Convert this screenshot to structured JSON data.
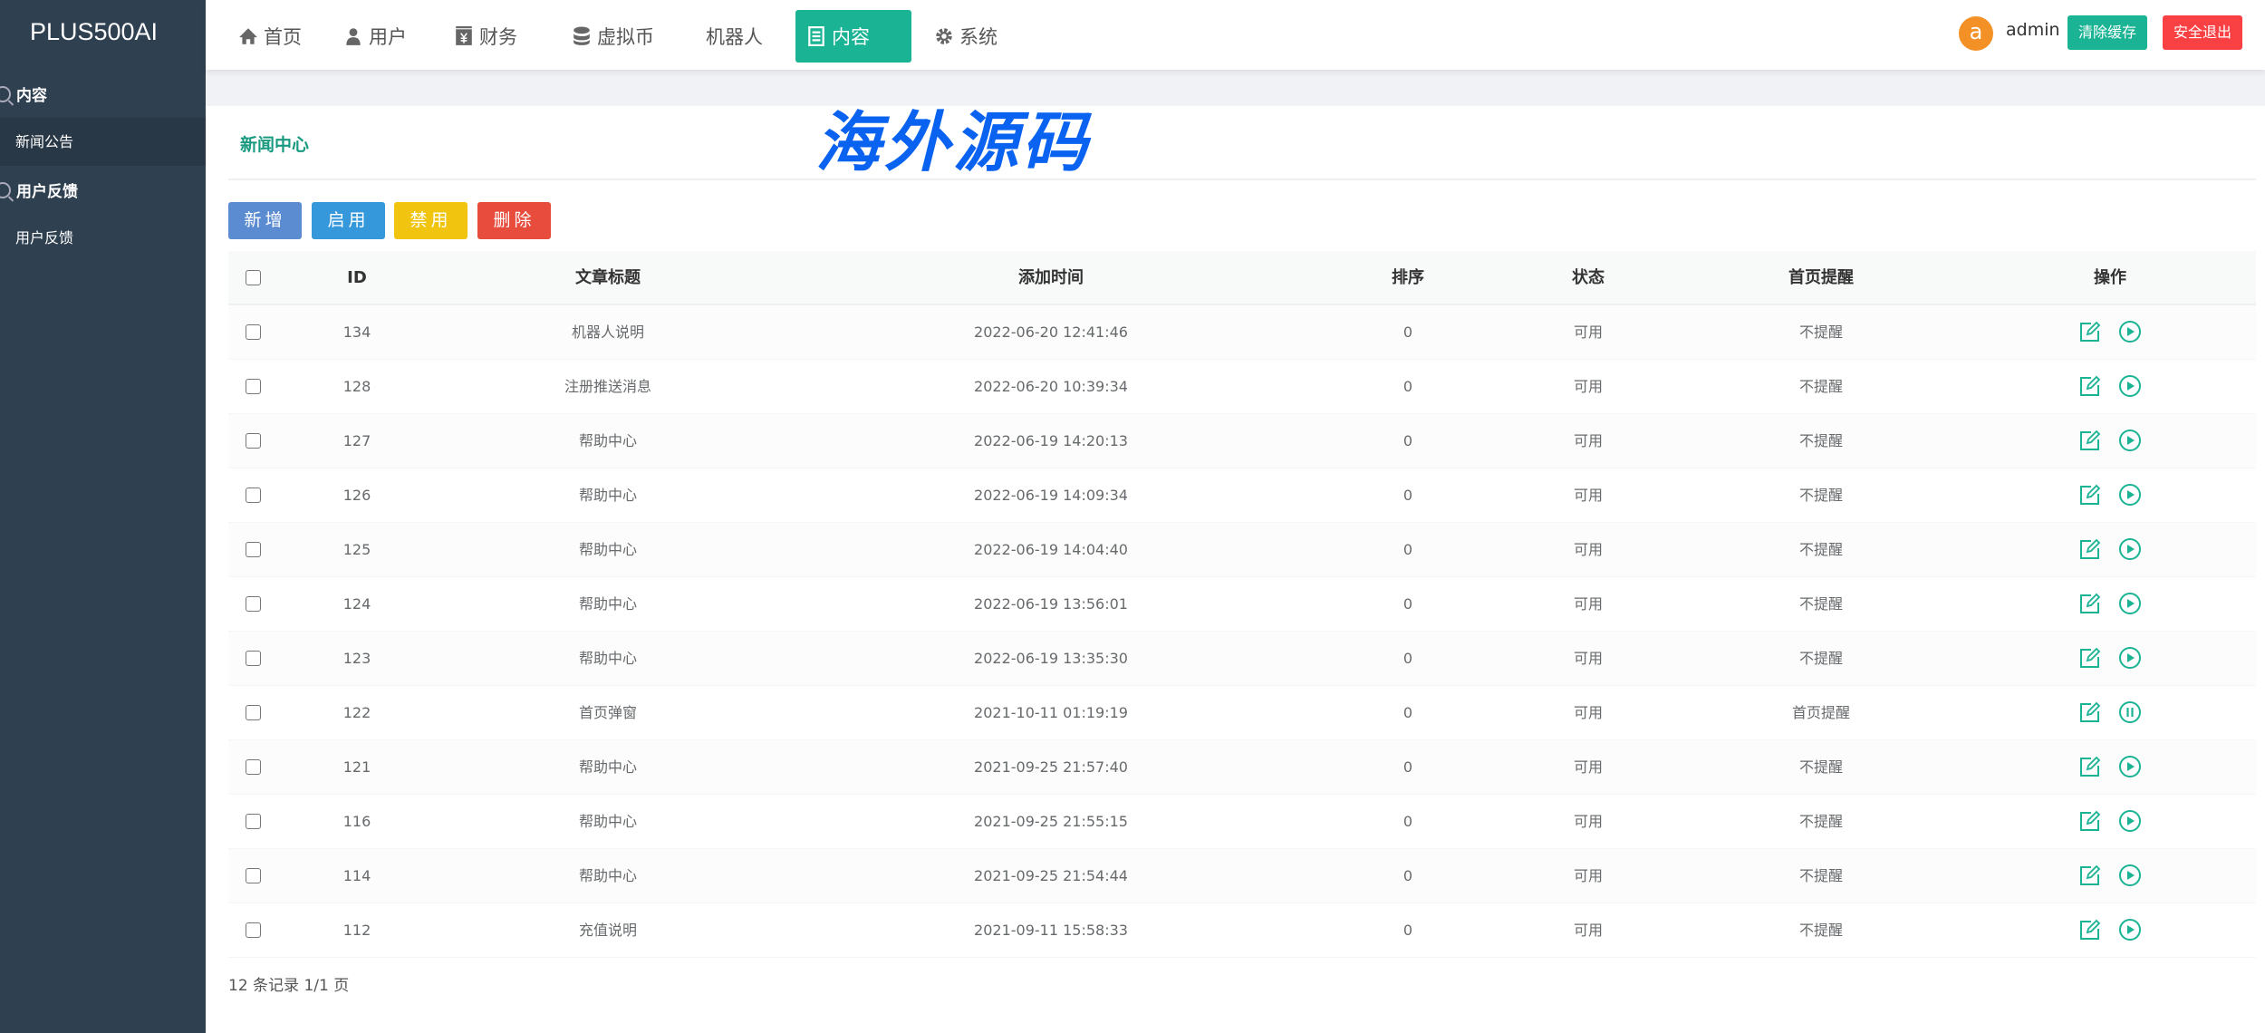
{
  "app": {
    "logo": "PLUS500AI"
  },
  "sidebar": {
    "groups": [
      {
        "label": "内容",
        "items": [
          {
            "label": "新闻公告",
            "active": true
          }
        ]
      },
      {
        "label": "用户反馈",
        "items": [
          {
            "label": "用户反馈",
            "active": false
          }
        ]
      }
    ]
  },
  "nav": {
    "items": [
      {
        "label": "首页",
        "icon": "home-icon"
      },
      {
        "label": "用户",
        "icon": "user-icon"
      },
      {
        "label": "财务",
        "icon": "yen-icon"
      },
      {
        "label": "虚拟币",
        "icon": "database-icon"
      },
      {
        "label": "机器人",
        "icon": ""
      },
      {
        "label": "内容",
        "icon": "list-icon",
        "active": true
      },
      {
        "label": "系统",
        "icon": "gear-icon"
      }
    ]
  },
  "user": {
    "avatar": "a",
    "name": "admin",
    "clear_cache": "清除缓存",
    "logout": "安全退出"
  },
  "colors": {
    "accent": "#1ab394",
    "sidebar": "#2f4050",
    "avatar": "#f39026",
    "logout": "#f94144",
    "add": "#5b8bd0",
    "enable": "#3498db",
    "disable": "#f1c40f",
    "delete": "#e74c3c"
  },
  "page": {
    "title": "新闻中心"
  },
  "actions": {
    "add": "新增",
    "enable": "启用",
    "disable": "禁用",
    "delete": "删除"
  },
  "table": {
    "columns": [
      "ID",
      "文章标题",
      "添加时间",
      "排序",
      "状态",
      "首页提醒",
      "操作"
    ],
    "rows": [
      {
        "id": "134",
        "title": "机器人说明",
        "time": "2022-06-20 12:41:46",
        "sort": "0",
        "status": "可用",
        "remind": "不提醒",
        "toggle": "play"
      },
      {
        "id": "128",
        "title": "注册推送消息",
        "time": "2022-06-20 10:39:34",
        "sort": "0",
        "status": "可用",
        "remind": "不提醒",
        "toggle": "play"
      },
      {
        "id": "127",
        "title": "帮助中心",
        "time": "2022-06-19 14:20:13",
        "sort": "0",
        "status": "可用",
        "remind": "不提醒",
        "toggle": "play"
      },
      {
        "id": "126",
        "title": "帮助中心",
        "time": "2022-06-19 14:09:34",
        "sort": "0",
        "status": "可用",
        "remind": "不提醒",
        "toggle": "play"
      },
      {
        "id": "125",
        "title": "帮助中心",
        "time": "2022-06-19 14:04:40",
        "sort": "0",
        "status": "可用",
        "remind": "不提醒",
        "toggle": "play"
      },
      {
        "id": "124",
        "title": "帮助中心",
        "time": "2022-06-19 13:56:01",
        "sort": "0",
        "status": "可用",
        "remind": "不提醒",
        "toggle": "play"
      },
      {
        "id": "123",
        "title": "帮助中心",
        "time": "2022-06-19 13:35:30",
        "sort": "0",
        "status": "可用",
        "remind": "不提醒",
        "toggle": "play"
      },
      {
        "id": "122",
        "title": "首页弹窗",
        "time": "2021-10-11 01:19:19",
        "sort": "0",
        "status": "可用",
        "remind": "首页提醒",
        "toggle": "pause"
      },
      {
        "id": "121",
        "title": "帮助中心",
        "time": "2021-09-25 21:57:40",
        "sort": "0",
        "status": "可用",
        "remind": "不提醒",
        "toggle": "play"
      },
      {
        "id": "116",
        "title": "帮助中心",
        "time": "2021-09-25 21:55:15",
        "sort": "0",
        "status": "可用",
        "remind": "不提醒",
        "toggle": "play"
      },
      {
        "id": "114",
        "title": "帮助中心",
        "time": "2021-09-25 21:54:44",
        "sort": "0",
        "status": "可用",
        "remind": "不提醒",
        "toggle": "play"
      },
      {
        "id": "112",
        "title": "充值说明",
        "time": "2021-09-11 15:58:33",
        "sort": "0",
        "status": "可用",
        "remind": "不提醒",
        "toggle": "play"
      }
    ]
  },
  "footer": {
    "summary": "12 条记录 1/1 页"
  },
  "watermark": "海外源码"
}
